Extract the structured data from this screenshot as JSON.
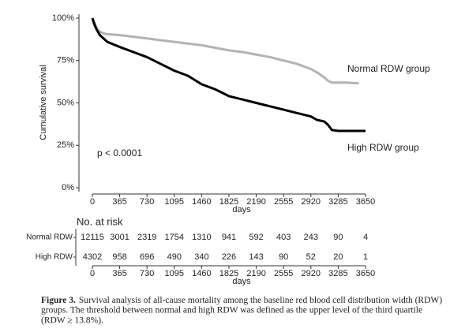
{
  "chart_data": {
    "type": "line",
    "y_label": "Cumulative survival",
    "x_label": "days",
    "annotations": [
      "p < 0.0001",
      "Normal RDW group",
      "High RDW group"
    ],
    "x": [
      0,
      30,
      60,
      100,
      150,
      200,
      365,
      548,
      730,
      913,
      1095,
      1278,
      1460,
      1643,
      1825,
      2008,
      2190,
      2373,
      2555,
      2738,
      2920,
      3000,
      3100,
      3150,
      3200,
      3285,
      3400,
      3560,
      3650
    ],
    "series": [
      {
        "name": "Normal RDW",
        "color": "#b3b3b3",
        "values": [
          100,
          97,
          94,
          92,
          91,
          90.5,
          90,
          89,
          88,
          87,
          86,
          85,
          84,
          82.5,
          81,
          80,
          78.5,
          77,
          75,
          73,
          70,
          68,
          65,
          63,
          62,
          62,
          62,
          61.5,
          null
        ]
      },
      {
        "name": "High RDW",
        "color": "#000000",
        "values": [
          100,
          96,
          93,
          90,
          88,
          86,
          83,
          80,
          77,
          73,
          69,
          66,
          61,
          58,
          54,
          52,
          50,
          48,
          46,
          44,
          42,
          40,
          39,
          37,
          34,
          33.5,
          33.5,
          33.5,
          33.5
        ]
      }
    ],
    "xlim": [
      0,
      3650
    ],
    "xticks": [
      0,
      365,
      730,
      1095,
      1460,
      1825,
      2190,
      2555,
      2920,
      3285,
      3650
    ],
    "ylim": [
      0,
      100
    ],
    "yticks": [
      {
        "value": 0,
        "label": "0%"
      },
      {
        "value": 25,
        "label": "25%"
      },
      {
        "value": 50,
        "label": "50%"
      },
      {
        "value": 75,
        "label": "75%"
      },
      {
        "value": 100,
        "label": "100%"
      }
    ],
    "risk_table": {
      "title": "No. at risk",
      "rows": [
        {
          "name": "Normal RDW",
          "values": [
            12115,
            3001,
            2319,
            1754,
            1310,
            941,
            592,
            403,
            243,
            90,
            4
          ]
        },
        {
          "name": "High RDW",
          "values": [
            4302,
            958,
            696,
            490,
            340,
            226,
            143,
            90,
            52,
            20,
            1
          ]
        }
      ]
    }
  },
  "caption": {
    "label": "Figure 3.",
    "lines": [
      "Survival analysis of all-cause mortality among the baseline red blood cell distribution width (RDW)",
      "groups. The threshold between normal and high RDW was defined as the upper level of the third quartile",
      "(RDW ≥ 13.8%)."
    ]
  }
}
